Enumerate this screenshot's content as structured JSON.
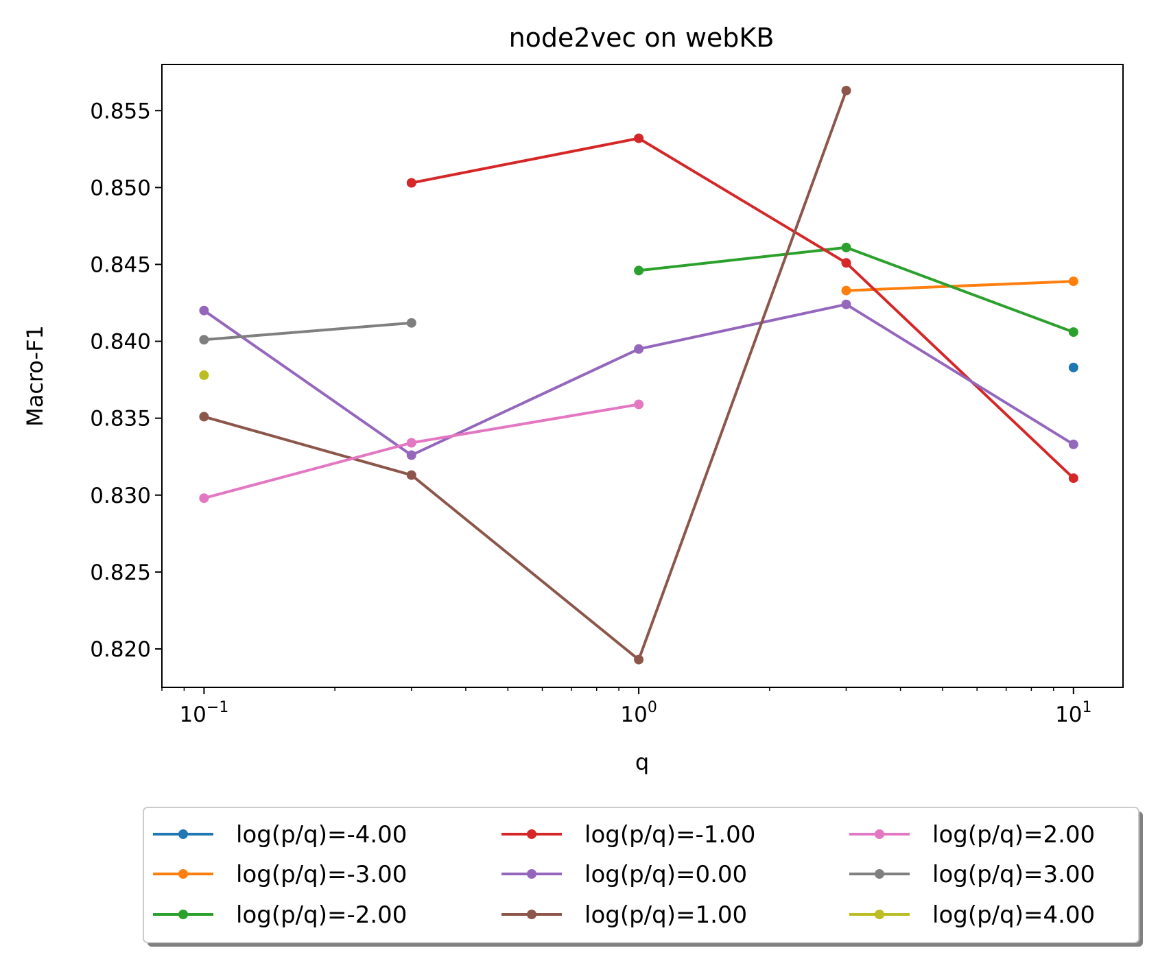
{
  "chart_data": {
    "type": "line",
    "title": "node2vec on webKB",
    "xlabel": "q",
    "ylabel": "Macro-F1",
    "xscale": "log",
    "xlim": [
      0.08,
      13
    ],
    "ylim": [
      0.8175,
      0.858
    ],
    "x_ticks": [
      {
        "value": 0.1,
        "base": "10",
        "exp": "−1"
      },
      {
        "value": 1,
        "base": "10",
        "exp": "0"
      },
      {
        "value": 10,
        "base": "10",
        "exp": "1"
      }
    ],
    "y_ticks": [
      {
        "value": 0.82,
        "label": "0.820"
      },
      {
        "value": 0.825,
        "label": "0.825"
      },
      {
        "value": 0.83,
        "label": "0.830"
      },
      {
        "value": 0.835,
        "label": "0.835"
      },
      {
        "value": 0.84,
        "label": "0.840"
      },
      {
        "value": 0.845,
        "label": "0.845"
      },
      {
        "value": 0.85,
        "label": "0.850"
      },
      {
        "value": 0.855,
        "label": "0.855"
      }
    ],
    "grid": false,
    "legend_placement": "bottom-center",
    "legend_columns": 3,
    "series": [
      {
        "name": "log(p/q)=-4.00",
        "color": "#1f77b4",
        "points": [
          [
            10,
            0.8383
          ]
        ]
      },
      {
        "name": "log(p/q)=-3.00",
        "color": "#ff7f0e",
        "points": [
          [
            3,
            0.8433
          ],
          [
            10,
            0.8439
          ]
        ]
      },
      {
        "name": "log(p/q)=-2.00",
        "color": "#2ca02c",
        "points": [
          [
            1,
            0.8446
          ],
          [
            3,
            0.8461
          ],
          [
            10,
            0.8406
          ]
        ]
      },
      {
        "name": "log(p/q)=-1.00",
        "color": "#d62728",
        "points": [
          [
            0.3,
            0.8503
          ],
          [
            1,
            0.8532
          ],
          [
            3,
            0.8451
          ],
          [
            10,
            0.8311
          ]
        ]
      },
      {
        "name": "log(p/q)=0.00",
        "color": "#9467bd",
        "points": [
          [
            0.1,
            0.842
          ],
          [
            0.3,
            0.8326
          ],
          [
            1,
            0.8395
          ],
          [
            3,
            0.8424
          ],
          [
            10,
            0.8333
          ]
        ]
      },
      {
        "name": "log(p/q)=1.00",
        "color": "#8c564b",
        "points": [
          [
            0.1,
            0.8351
          ],
          [
            0.3,
            0.8313
          ],
          [
            1,
            0.8193
          ],
          [
            3,
            0.8563
          ]
        ]
      },
      {
        "name": "log(p/q)=2.00",
        "color": "#e377c2",
        "points": [
          [
            0.1,
            0.8298
          ],
          [
            0.3,
            0.8334
          ],
          [
            1,
            0.8359
          ]
        ]
      },
      {
        "name": "log(p/q)=3.00",
        "color": "#7f7f7f",
        "points": [
          [
            0.1,
            0.8401
          ],
          [
            0.3,
            0.8412
          ]
        ]
      },
      {
        "name": "log(p/q)=4.00",
        "color": "#bcbd22",
        "points": [
          [
            0.1,
            0.8378
          ]
        ]
      }
    ]
  }
}
